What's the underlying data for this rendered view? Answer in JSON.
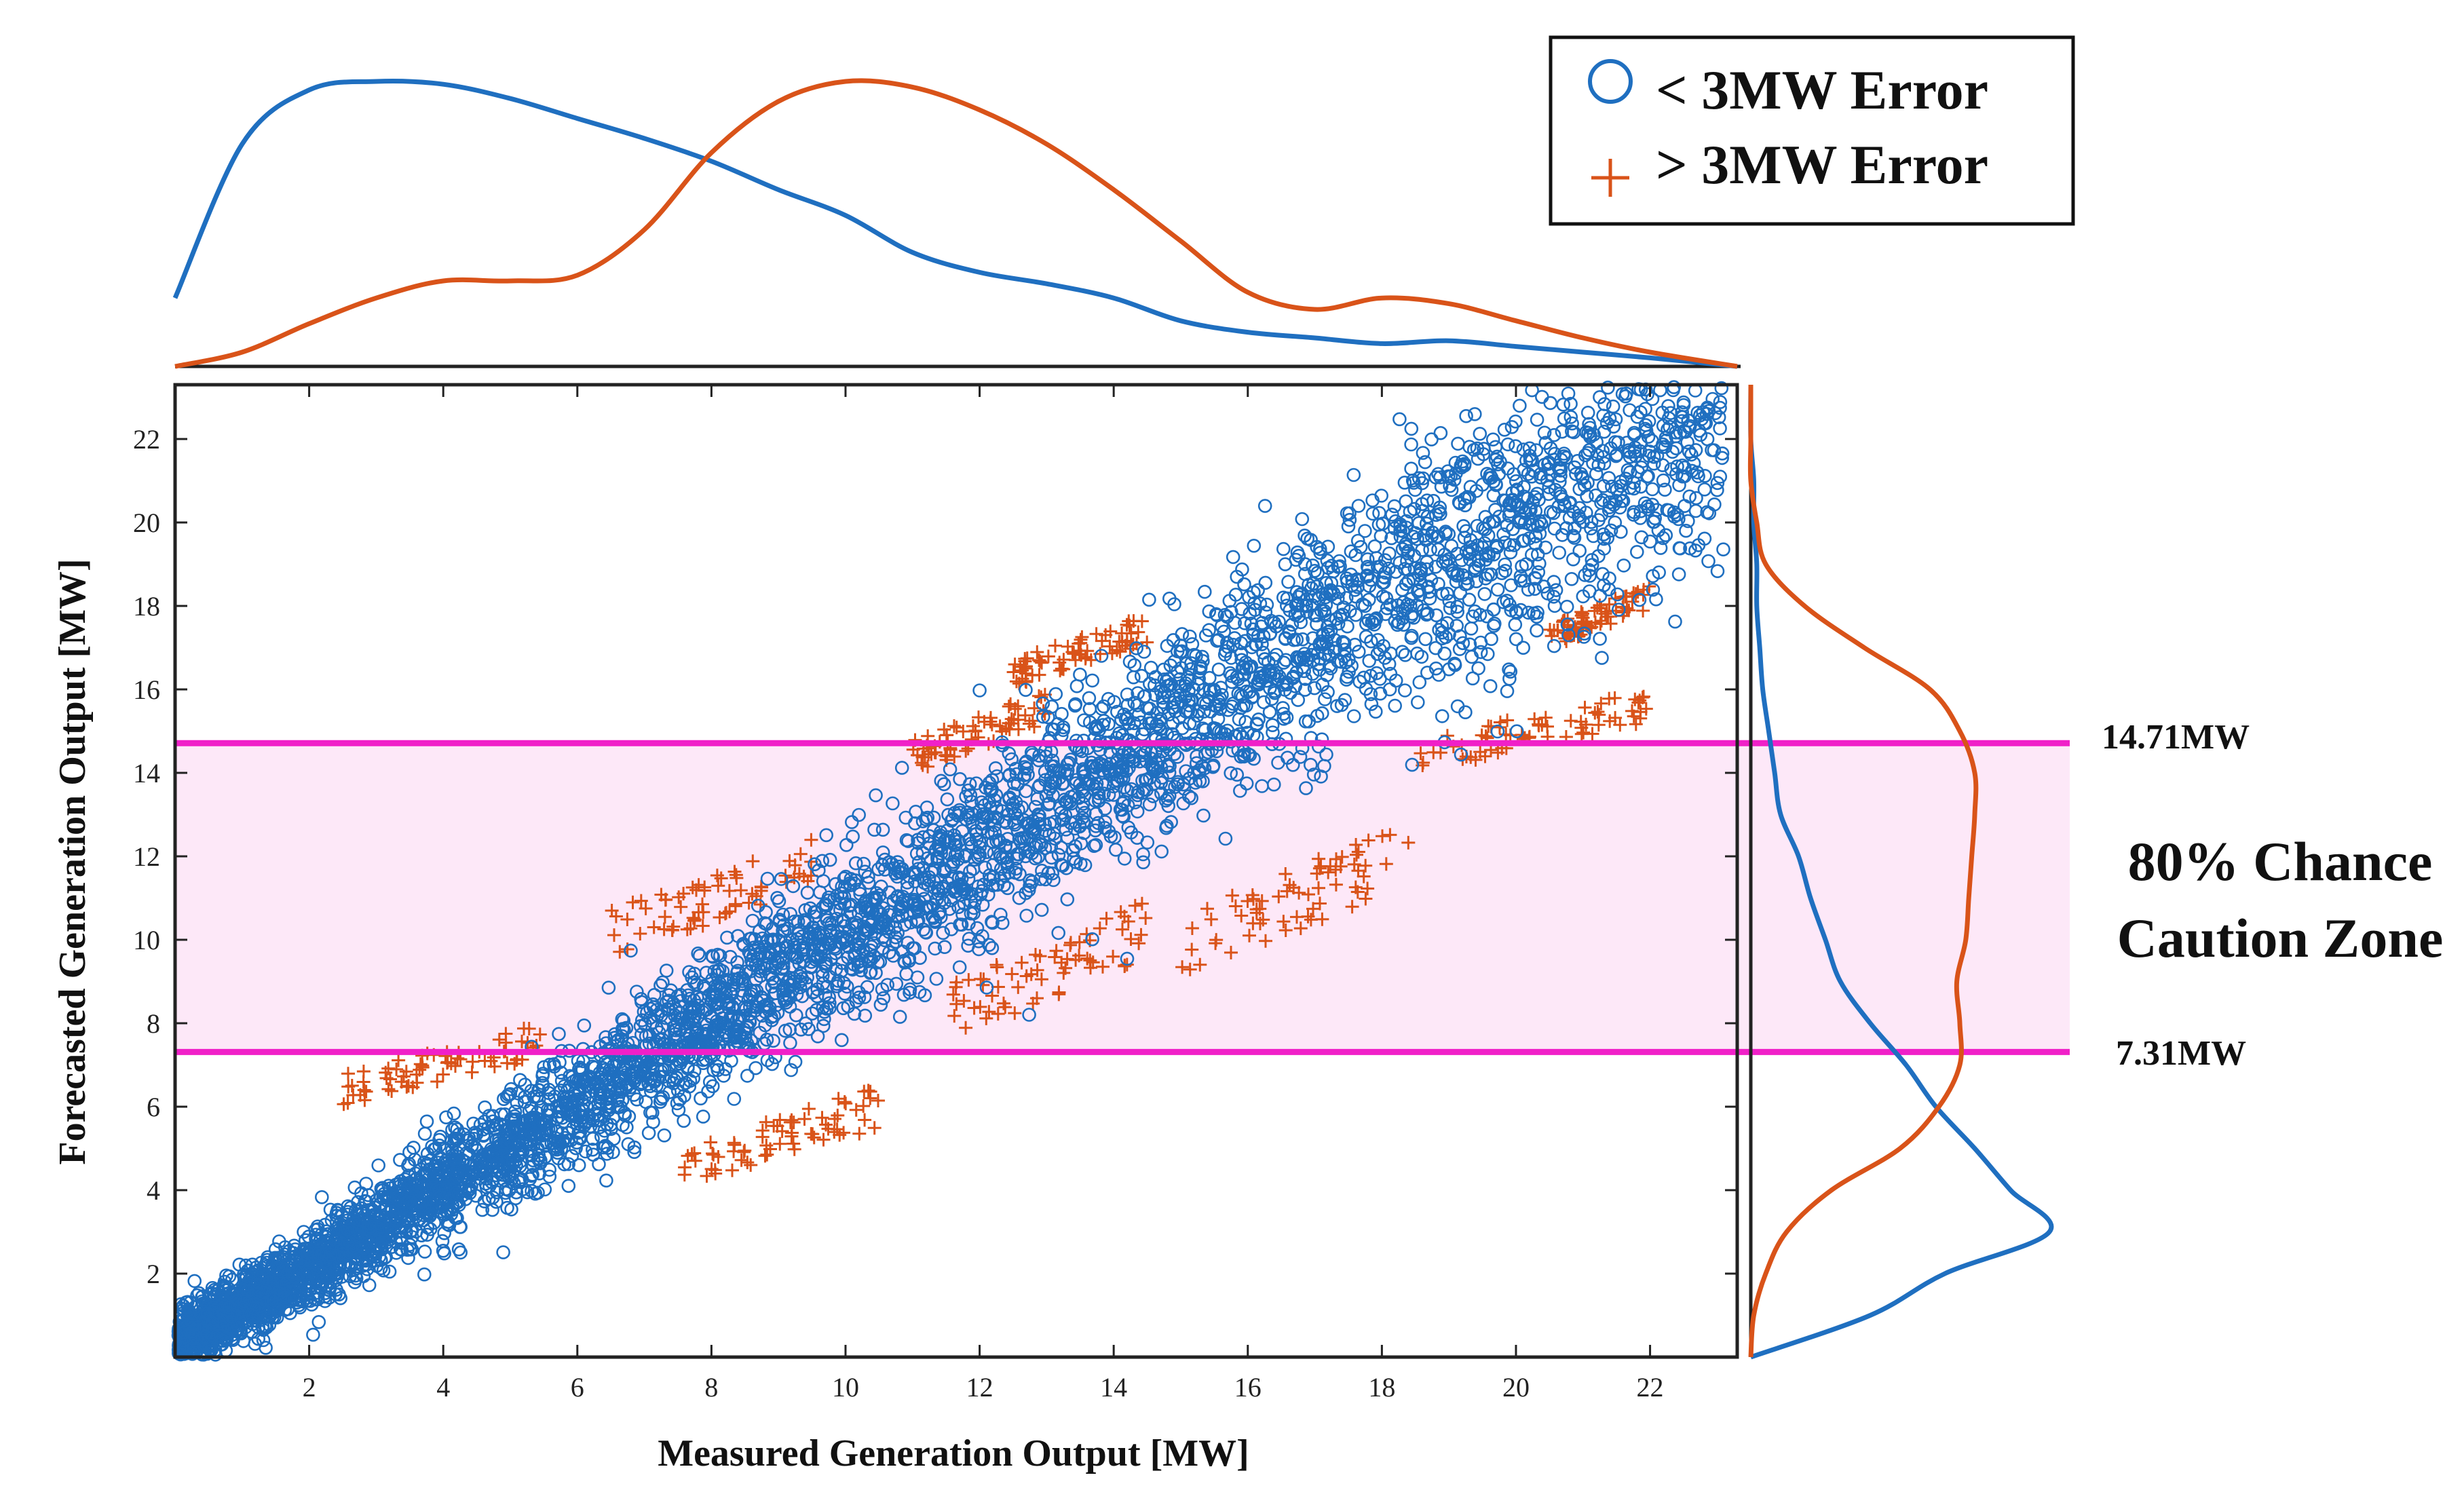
{
  "chart_data": {
    "type": "scatter",
    "xlabel": "Measured Generation Output [MW]",
    "ylabel": "Forecasted Generation Output [MW]",
    "xlim": [
      0,
      23.3
    ],
    "ylim": [
      0,
      23.3
    ],
    "x_ticks": [
      2,
      4,
      6,
      8,
      10,
      12,
      14,
      16,
      18,
      20,
      22
    ],
    "y_ticks": [
      2,
      4,
      6,
      8,
      10,
      12,
      14,
      16,
      18,
      20,
      22
    ],
    "grid": false,
    "legend": {
      "position": "top-right",
      "entries": [
        {
          "label": "< 3MW Error",
          "marker": "circle",
          "color": "#1f6fc0"
        },
        {
          "label": "> 3MW Error",
          "marker": "plus",
          "color": "#d95319"
        }
      ]
    },
    "series": [
      {
        "name": "< 3MW Error",
        "marker": "circle",
        "color": "#1f6fc0",
        "trend": {
          "x": [
            0,
            2,
            4,
            6,
            8,
            10,
            12,
            14,
            16,
            18,
            20,
            22,
            23
          ],
          "y": [
            0.3,
            2.1,
            4.1,
            6.1,
            8.1,
            10.1,
            12.1,
            14.2,
            16.2,
            18.2,
            20.0,
            21.6,
            22.5
          ]
        },
        "approx_points": 20000
      },
      {
        "name": "> 3MW Error",
        "marker": "plus",
        "color": "#d95319",
        "clusters": [
          {
            "x": [
              2.5,
              5.5
            ],
            "y": [
              6.0,
              8.0
            ]
          },
          {
            "x": [
              6.5,
              9.5
            ],
            "y": [
              9.5,
              12.5
            ]
          },
          {
            "x": [
              11.0,
              13.0
            ],
            "y": [
              14.0,
              16.0
            ]
          },
          {
            "x": [
              12.5,
              14.5
            ],
            "y": [
              16.0,
              17.8
            ]
          },
          {
            "x": [
              7.5,
              10.5
            ],
            "y": [
              4.0,
              6.5
            ]
          },
          {
            "x": [
              11.5,
              14.5
            ],
            "y": [
              7.5,
              11.0
            ]
          },
          {
            "x": [
              15.0,
              18.5
            ],
            "y": [
              9.0,
              13.0
            ]
          },
          {
            "x": [
              18.5,
              22.0
            ],
            "y": [
              14.0,
              16.0
            ]
          },
          {
            "x": [
              20.5,
              22.0
            ],
            "y": [
              17.0,
              18.5
            ]
          }
        ],
        "approx_points": 700
      }
    ],
    "marginal_x": {
      "x": [
        0,
        1,
        2,
        3,
        4,
        5,
        6,
        7,
        8,
        9,
        10,
        11,
        12,
        13,
        14,
        15,
        16,
        17,
        18,
        19,
        20,
        21,
        22,
        23.3
      ],
      "lt3": [
        0.24,
        0.78,
        0.97,
        1.0,
        0.99,
        0.94,
        0.87,
        0.8,
        0.72,
        0.62,
        0.53,
        0.4,
        0.33,
        0.29,
        0.24,
        0.16,
        0.12,
        0.1,
        0.08,
        0.09,
        0.07,
        0.05,
        0.03,
        0.0
      ],
      "gt3": [
        0.0,
        0.05,
        0.15,
        0.24,
        0.3,
        0.3,
        0.32,
        0.48,
        0.75,
        0.93,
        1.0,
        0.98,
        0.9,
        0.78,
        0.62,
        0.44,
        0.26,
        0.2,
        0.24,
        0.22,
        0.16,
        0.1,
        0.05,
        0.0
      ]
    },
    "marginal_y": {
      "y": [
        0,
        1,
        2,
        3,
        4,
        5,
        6,
        7,
        8,
        9,
        10,
        11,
        12,
        13,
        14,
        15,
        16,
        17,
        18,
        19,
        20,
        21,
        22,
        23.3
      ],
      "lt3": [
        0.0,
        0.4,
        0.65,
        1.0,
        0.87,
        0.75,
        0.62,
        0.52,
        0.4,
        0.3,
        0.25,
        0.2,
        0.16,
        0.1,
        0.08,
        0.06,
        0.04,
        0.03,
        0.02,
        0.02,
        0.01,
        0.01,
        0.0,
        0.0
      ],
      "gt3": [
        0.0,
        0.01,
        0.05,
        0.12,
        0.27,
        0.5,
        0.63,
        0.7,
        0.7,
        0.69,
        0.72,
        0.73,
        0.74,
        0.75,
        0.75,
        0.7,
        0.6,
        0.38,
        0.18,
        0.05,
        0.02,
        0.0,
        0.0,
        0.0
      ]
    },
    "caution_zone": {
      "lower": 7.31,
      "upper": 14.71,
      "lower_label": "7.31MW",
      "upper_label": "14.71MW",
      "label_line1": "80% Chance",
      "label_line2": "Caution Zone",
      "color": "#f020c8"
    }
  }
}
